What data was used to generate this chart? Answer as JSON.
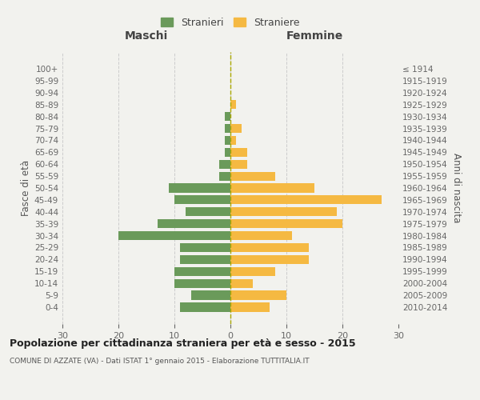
{
  "age_groups": [
    "0-4",
    "5-9",
    "10-14",
    "15-19",
    "20-24",
    "25-29",
    "30-34",
    "35-39",
    "40-44",
    "45-49",
    "50-54",
    "55-59",
    "60-64",
    "65-69",
    "70-74",
    "75-79",
    "80-84",
    "85-89",
    "90-94",
    "95-99",
    "100+"
  ],
  "birth_years": [
    "2010-2014",
    "2005-2009",
    "2000-2004",
    "1995-1999",
    "1990-1994",
    "1985-1989",
    "1980-1984",
    "1975-1979",
    "1970-1974",
    "1965-1969",
    "1960-1964",
    "1955-1959",
    "1950-1954",
    "1945-1949",
    "1940-1944",
    "1935-1939",
    "1930-1934",
    "1925-1929",
    "1920-1924",
    "1915-1919",
    "≤ 1914"
  ],
  "maschi": [
    9,
    7,
    10,
    10,
    9,
    9,
    20,
    13,
    8,
    10,
    11,
    2,
    2,
    1,
    1,
    1,
    1,
    0,
    0,
    0,
    0
  ],
  "femmine": [
    7,
    10,
    4,
    8,
    14,
    14,
    11,
    20,
    19,
    27,
    15,
    8,
    3,
    3,
    1,
    2,
    0,
    1,
    0,
    0,
    0
  ],
  "male_color": "#6a9a5a",
  "female_color": "#f5b942",
  "background_color": "#f2f2ee",
  "grid_color": "#cccccc",
  "title": "Popolazione per cittadinanza straniera per età e sesso - 2015",
  "subtitle": "COMUNE DI AZZATE (VA) - Dati ISTAT 1° gennaio 2015 - Elaborazione TUTTITALIA.IT",
  "ylabel_left": "Fasce di età",
  "ylabel_right": "Anni di nascita",
  "xlabel_left": "Maschi",
  "xlabel_right": "Femmine",
  "legend_male": "Stranieri",
  "legend_female": "Straniere",
  "xlim": 30,
  "bar_height": 0.75
}
